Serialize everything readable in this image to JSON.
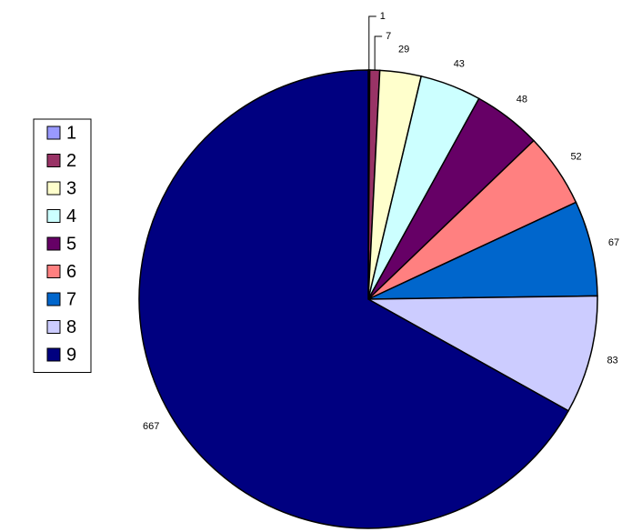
{
  "chart_data": {
    "type": "pie",
    "categories": [
      "1",
      "2",
      "3",
      "4",
      "5",
      "6",
      "7",
      "8",
      "9"
    ],
    "values": [
      1,
      7,
      29,
      43,
      48,
      52,
      67,
      83,
      667
    ],
    "colors": [
      "#9999ff",
      "#993366",
      "#ffffcc",
      "#ccffff",
      "#660066",
      "#ff8080",
      "#0066cc",
      "#ccccff",
      "#000080"
    ],
    "legend": "left"
  }
}
